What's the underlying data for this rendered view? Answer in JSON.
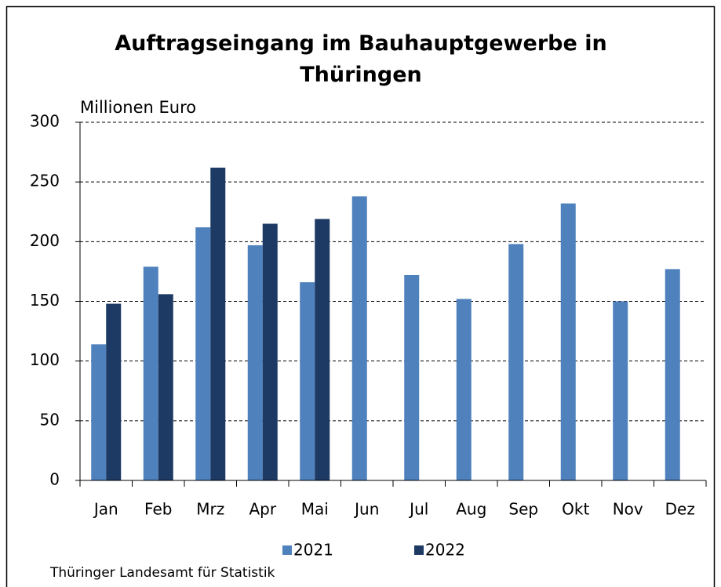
{
  "chart_data": {
    "type": "bar",
    "title": "Auftragseingang im Bauhauptgewerbe in Thüringen",
    "y_label": "Millionen Euro",
    "source": "Thüringer Landesamt für Statistik",
    "categories": [
      "Jan",
      "Feb",
      "Mrz",
      "Apr",
      "Mai",
      "Jun",
      "Jul",
      "Aug",
      "Sep",
      "Okt",
      "Nov",
      "Dez"
    ],
    "series": [
      {
        "name": "2021",
        "color": "#4f81bd",
        "values": [
          114,
          179,
          212,
          197,
          166,
          238,
          172,
          152,
          198,
          232,
          150,
          177
        ]
      },
      {
        "name": "2022",
        "color": "#1c3a64",
        "values": [
          148,
          156,
          262,
          215,
          219,
          null,
          null,
          null,
          null,
          null,
          null,
          null
        ]
      }
    ],
    "ylim": [
      0,
      300
    ],
    "yticks": [
      0,
      50,
      100,
      150,
      200,
      250,
      300
    ],
    "grid": true,
    "legend": "bottom"
  }
}
